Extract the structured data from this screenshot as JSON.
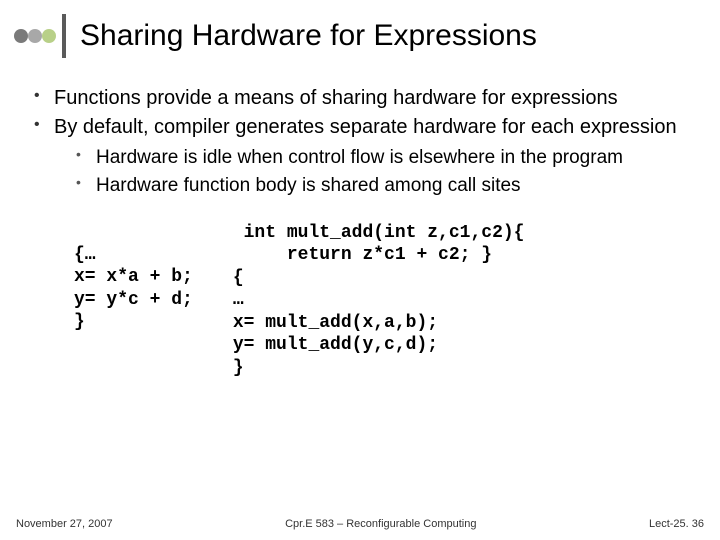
{
  "dots": [
    "#7a7a7a",
    "#a8a8a8",
    "#b8d088"
  ],
  "vbar_color": "#5a5a5a",
  "title": "Sharing Hardware for Expressions",
  "bullets": [
    "Functions provide a means of sharing hardware for expressions",
    "By default, compiler generates separate hardware for each expression"
  ],
  "subbullets": [
    "Hardware is idle when control flow is elsewhere in the program",
    "Hardware function body is shared among call sites"
  ],
  "code_left": "{…\nx= x*a + b;\ny= y*c + d;\n}",
  "code_right": " int mult_add(int z,c1,c2){\n     return z*c1 + c2; }\n{\n…\nx= mult_add(x,a,b);\ny= mult_add(y,c,d);\n}",
  "footer": {
    "left": "November 27, 2007",
    "center": "Cpr.E 583 – Reconfigurable Computing",
    "right": "Lect-25. 36"
  }
}
